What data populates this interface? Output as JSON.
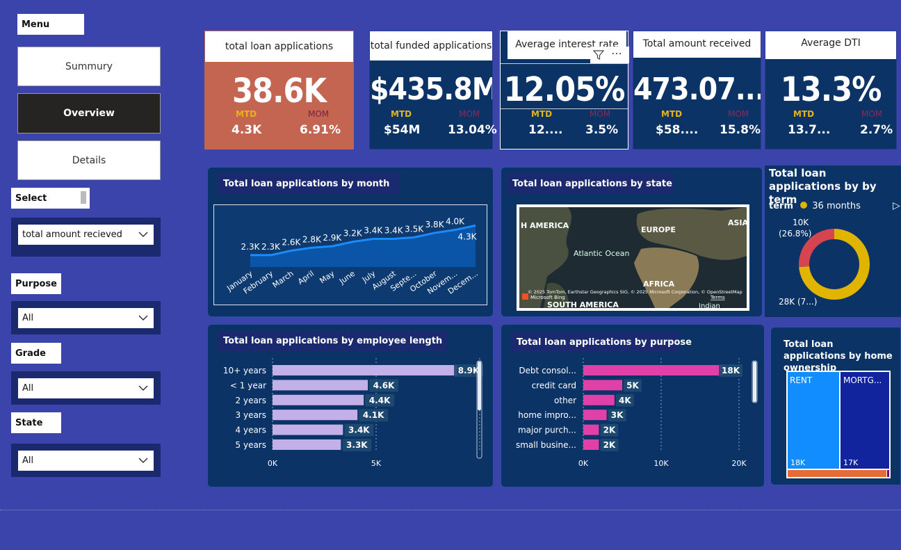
{
  "menu": {
    "title": "Menu",
    "buttons": [
      {
        "label": "Summury",
        "active": false
      },
      {
        "label": "Overview",
        "active": true
      },
      {
        "label": "Details",
        "active": false
      }
    ]
  },
  "slicers": {
    "select": {
      "label": "Select",
      "value": "total amount recieved"
    },
    "purpose": {
      "label": "Purpose",
      "value": "All"
    },
    "grade": {
      "label": "Grade",
      "value": "All"
    },
    "state": {
      "label": "State",
      "value": "All"
    }
  },
  "kpis": [
    {
      "title": "total loan applications",
      "value": "38.6K",
      "mtd_label": "MTD",
      "mom_label": "MOM",
      "mtd": "4.3K",
      "mom": "6.91%",
      "bg": "#c46552"
    },
    {
      "title": "total funded applications",
      "value": "$435.8M",
      "mtd_label": "MTD",
      "mom_label": "MOM",
      "mtd": "$54M",
      "mom": "13.04%",
      "bg": "#0b3366"
    },
    {
      "title": "Average interest rate",
      "value": "12.05%",
      "mtd_label": "MTD",
      "mom_label": "MOM",
      "mtd": "12....",
      "mom": "3.5%",
      "bg": "#0b3366"
    },
    {
      "title": "Total amount received",
      "value": "473.07...",
      "mtd_label": "MTD",
      "mom_label": "MOM",
      "mtd": "$58....",
      "mom": "15.8%",
      "bg": "#0b3366"
    },
    {
      "title": "Average DTI",
      "value": "13.3%",
      "mtd_label": "MTD",
      "mom_label": "MOM",
      "mtd": "13.7...",
      "mom": "2.7%",
      "bg": "#0b3366"
    }
  ],
  "icons": {
    "filter": "filter-icon",
    "more": "more-options-icon",
    "chevron": "chevron-down-icon"
  },
  "month_chart": {
    "title": "Total loan applications by month",
    "type": "area",
    "categories": [
      "January",
      "February",
      "March",
      "April",
      "May",
      "June",
      "July",
      "August",
      "Septe...",
      "October",
      "Novem...",
      "Decem..."
    ],
    "value_labels": [
      "2.3K",
      "2.3K",
      "2.6K",
      "2.8K",
      "2.9K",
      "3.2K",
      "3.4K",
      "3.4K",
      "3.5K",
      "3.8K",
      "4.0K",
      "4.3K"
    ],
    "values": [
      2.3,
      2.3,
      2.6,
      2.8,
      2.9,
      3.2,
      3.4,
      3.4,
      3.5,
      3.8,
      4.0,
      4.3
    ],
    "color": "#1a8cff"
  },
  "state_map": {
    "title": "Total loan applications by state",
    "labels": {
      "america": "H AMERICA",
      "europe": "EUROPE",
      "asia": "ASIA",
      "ocean": "Atlantic Ocean",
      "africa": "AFRICA",
      "south_america": "SOUTH AMERICA",
      "indian": "Indian"
    },
    "attribution": "© 2025 TomTom, Earthstar Geographics SIO, © 2025 Microsoft Corporation, © OpenStreetMap",
    "terms": "Terms",
    "bing": "Microsoft Bing"
  },
  "term_chart": {
    "title": "Total loan applications by by term",
    "legend_title": "term",
    "legend_item": "36 months",
    "slice_labels": [
      {
        "value": "10K",
        "pct": "(26.8%)"
      },
      {
        "value": "28K (7...)"
      }
    ],
    "values": [
      10,
      28
    ],
    "colors": [
      "#d6454f",
      "#e0b400"
    ]
  },
  "emp_chart": {
    "title": "Total loan applications by employee length",
    "type": "bar",
    "categories": [
      "10+ years",
      "< 1 year",
      "2 years",
      "3 years",
      "4 years",
      "5 years"
    ],
    "values": [
      8.9,
      4.6,
      4.4,
      4.1,
      3.4,
      3.3
    ],
    "value_labels": [
      "8.9K",
      "4.6K",
      "4.4K",
      "4.1K",
      "3.4K",
      "3.3K"
    ],
    "xticks": [
      "0K",
      "5K"
    ],
    "xmax": 10,
    "color": "#c4b0e8"
  },
  "purpose_chart": {
    "title": "Total loan applications by purpose",
    "type": "bar",
    "categories": [
      "Debt consol...",
      "credit card",
      "other",
      "home impro...",
      "major purch...",
      "small busine..."
    ],
    "values": [
      18,
      5,
      4,
      3,
      2,
      2
    ],
    "value_labels": [
      "18K",
      "5K",
      "4K",
      "3K",
      "2K",
      "2K"
    ],
    "xticks": [
      "0K",
      "10K",
      "20K"
    ],
    "xmax": 20,
    "color": "#e040a8"
  },
  "home_chart": {
    "title": "Total loan applications by home ownership",
    "tiles": [
      {
        "label": "RENT",
        "value": "18K",
        "color": "#118dff"
      },
      {
        "label": "MORTG...",
        "value": "17K",
        "color": "#12239e"
      }
    ],
    "strip_colors": [
      "#e66c37",
      "#6b007b"
    ]
  }
}
